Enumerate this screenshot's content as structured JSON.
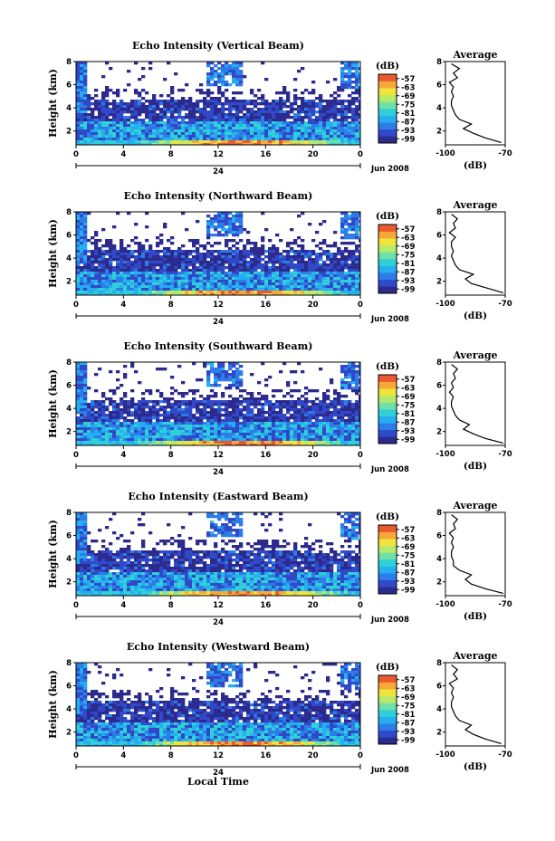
{
  "chart_data": [
    {
      "type": "heatmap",
      "title": "Echo Intensity (Vertical Beam)",
      "ylabel": "Height (km)",
      "xlabel": "",
      "date_label": "Jun 2008",
      "x_ticks": [
        "0",
        "4",
        "8",
        "12",
        "16",
        "20",
        "0"
      ],
      "day_label": "24",
      "y_ticks": [
        "2",
        "4",
        "6",
        "8"
      ],
      "colorbar": {
        "unit": "(dB)",
        "ticks": [
          "-57",
          "-63",
          "-69",
          "-75",
          "-81",
          "-87",
          "-93",
          "-99"
        ]
      },
      "profile": {
        "title": "Average",
        "xlabel": "(dB)",
        "x_ticks": [
          "-100",
          "-70"
        ],
        "xlim": [
          -100,
          -70
        ],
        "y_ticks": [
          "2",
          "4",
          "6",
          "8"
        ],
        "ylim": [
          0.8,
          8
        ],
        "heights": [
          1.0,
          1.4,
          1.8,
          2.2,
          2.6,
          3.0,
          3.4,
          3.8,
          4.2,
          4.6,
          5.0,
          5.4,
          5.8,
          6.2,
          6.6,
          7.0,
          7.4,
          7.8
        ],
        "values": [
          -72,
          -80,
          -86,
          -91,
          -87,
          -93,
          -95,
          -96,
          -97,
          -97,
          -96,
          -97,
          -96,
          -98,
          -94,
          -96,
          -93,
          -97
        ]
      }
    },
    {
      "type": "heatmap",
      "title": "Echo Intensity (Northward Beam)",
      "ylabel": "Height (km)",
      "xlabel": "",
      "date_label": "Jun 2008",
      "x_ticks": [
        "0",
        "4",
        "8",
        "12",
        "16",
        "20",
        "0"
      ],
      "day_label": "24",
      "y_ticks": [
        "2",
        "4",
        "6",
        "8"
      ],
      "colorbar": {
        "unit": "(dB)",
        "ticks": [
          "-57",
          "-63",
          "-69",
          "-75",
          "-81",
          "-87",
          "-93",
          "-99"
        ]
      },
      "profile": {
        "title": "Average",
        "xlabel": "(dB)",
        "x_ticks": [
          "-100",
          "-70"
        ],
        "xlim": [
          -100,
          -70
        ],
        "y_ticks": [
          "2",
          "4",
          "6",
          "8"
        ],
        "ylim": [
          0.8,
          8
        ],
        "heights": [
          1.0,
          1.4,
          1.8,
          2.2,
          2.6,
          3.0,
          3.4,
          3.8,
          4.2,
          4.6,
          5.0,
          5.4,
          5.8,
          6.2,
          6.6,
          7.0,
          7.4,
          7.8
        ],
        "values": [
          -71,
          -79,
          -87,
          -90,
          -86,
          -93,
          -95,
          -96,
          -97,
          -96,
          -97,
          -97,
          -95,
          -98,
          -95,
          -96,
          -94,
          -97
        ]
      }
    },
    {
      "type": "heatmap",
      "title": "Echo Intensity (Southward Beam)",
      "ylabel": "Height (km)",
      "xlabel": "",
      "date_label": "Jun 2008",
      "x_ticks": [
        "0",
        "4",
        "8",
        "12",
        "16",
        "20",
        "0"
      ],
      "day_label": "24",
      "y_ticks": [
        "2",
        "4",
        "6",
        "8"
      ],
      "colorbar": {
        "unit": "(dB)",
        "ticks": [
          "-57",
          "-63",
          "-69",
          "-75",
          "-81",
          "-87",
          "-93",
          "-99"
        ]
      },
      "profile": {
        "title": "Average",
        "xlabel": "(dB)",
        "x_ticks": [
          "-100",
          "-70"
        ],
        "xlim": [
          -100,
          -70
        ],
        "y_ticks": [
          "2",
          "4",
          "6",
          "8"
        ],
        "ylim": [
          0.8,
          8
        ],
        "heights": [
          1.0,
          1.4,
          1.8,
          2.2,
          2.6,
          3.0,
          3.4,
          3.8,
          4.2,
          4.6,
          5.0,
          5.4,
          5.8,
          6.2,
          6.6,
          7.0,
          7.4,
          7.8
        ],
        "values": [
          -71,
          -80,
          -86,
          -91,
          -88,
          -93,
          -95,
          -96,
          -97,
          -97,
          -96,
          -98,
          -96,
          -97,
          -95,
          -96,
          -94,
          -97
        ]
      }
    },
    {
      "type": "heatmap",
      "title": "Echo Intensity (Eastward Beam)",
      "ylabel": "Height (km)",
      "xlabel": "",
      "date_label": "Jun 2008",
      "x_ticks": [
        "0",
        "4",
        "8",
        "12",
        "16",
        "20",
        "0"
      ],
      "day_label": "24",
      "y_ticks": [
        "2",
        "4",
        "6",
        "8"
      ],
      "colorbar": {
        "unit": "(dB)",
        "ticks": [
          "-57",
          "-63",
          "-69",
          "-75",
          "-81",
          "-87",
          "-93",
          "-99"
        ]
      },
      "profile": {
        "title": "Average",
        "xlabel": "(dB)",
        "x_ticks": [
          "-100",
          "-70"
        ],
        "xlim": [
          -100,
          -70
        ],
        "y_ticks": [
          "2",
          "4",
          "6",
          "8"
        ],
        "ylim": [
          0.8,
          8
        ],
        "heights": [
          1.0,
          1.4,
          1.8,
          2.2,
          2.6,
          3.0,
          3.4,
          3.8,
          4.2,
          4.6,
          5.0,
          5.4,
          5.8,
          6.2,
          6.6,
          7.0,
          7.4,
          7.8
        ],
        "values": [
          -71,
          -80,
          -87,
          -90,
          -87,
          -93,
          -96,
          -96,
          -97,
          -97,
          -96,
          -97,
          -96,
          -98,
          -95,
          -96,
          -94,
          -97
        ]
      }
    },
    {
      "type": "heatmap",
      "title": "Echo Intensity (Westward Beam)",
      "ylabel": "Height (km)",
      "xlabel": "Local Time",
      "date_label": "Jun 2008",
      "x_ticks": [
        "0",
        "4",
        "8",
        "12",
        "16",
        "20",
        "0"
      ],
      "day_label": "24",
      "y_ticks": [
        "2",
        "4",
        "6",
        "8"
      ],
      "colorbar": {
        "unit": "(dB)",
        "ticks": [
          "-57",
          "-63",
          "-69",
          "-75",
          "-81",
          "-87",
          "-93",
          "-99"
        ]
      },
      "profile": {
        "title": "Average",
        "xlabel": "(dB)",
        "x_ticks": [
          "-100",
          "-70"
        ],
        "xlim": [
          -100,
          -70
        ],
        "y_ticks": [
          "2",
          "4",
          "6",
          "8"
        ],
        "ylim": [
          0.8,
          8
        ],
        "heights": [
          1.0,
          1.4,
          1.8,
          2.2,
          2.6,
          3.0,
          3.4,
          3.8,
          4.2,
          4.6,
          5.0,
          5.4,
          5.8,
          6.2,
          6.6,
          7.0,
          7.4,
          7.8
        ],
        "values": [
          -72,
          -80,
          -86,
          -90,
          -87,
          -93,
          -95,
          -96,
          -97,
          -97,
          -96,
          -97,
          -96,
          -98,
          -94,
          -96,
          -94,
          -97
        ]
      }
    }
  ],
  "colorscale": [
    "#2c2a8c",
    "#2f49c8",
    "#2c7de8",
    "#25aef0",
    "#2fd0d8",
    "#6fe0a8",
    "#b6ea6a",
    "#f0e43c",
    "#f8a838",
    "#ea5a2e"
  ]
}
